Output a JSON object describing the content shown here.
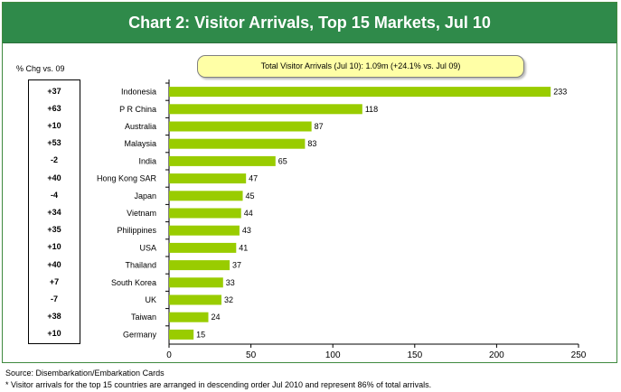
{
  "title": "Chart 2: Visitor Arrivals, Top 15 Markets, Jul 10",
  "pct_header": "% Chg vs. 09",
  "total_box": "Total Visitor Arrivals (Jul 10): 1.09m (+24.1% vs. Jul 09)",
  "pct_changes": [
    "+37",
    "+63",
    "+10",
    "+53",
    "-2",
    "+40",
    "-4",
    "+34",
    "+35",
    "+10",
    "+40",
    "+7",
    "-7",
    "+38",
    "+10"
  ],
  "colors": {
    "bar": "#99cc00",
    "header": "#2f8a4a",
    "box": "#ffffa6"
  },
  "chart_data": {
    "type": "bar",
    "orientation": "horizontal",
    "categories": [
      "Indonesia",
      "P R China",
      "Australia",
      "Malaysia",
      "India",
      "Hong Kong SAR",
      "Japan",
      "Vietnam",
      "Philippines",
      "USA",
      "Thailand",
      "South Korea",
      "UK",
      "Taiwan",
      "Germany"
    ],
    "values": [
      233,
      118,
      87,
      83,
      65,
      47,
      45,
      44,
      43,
      41,
      37,
      33,
      32,
      24,
      15
    ],
    "xlim": [
      0,
      250
    ],
    "xticks": [
      0,
      50,
      100,
      150,
      200,
      250
    ],
    "grid": false,
    "title": "Chart 2: Visitor Arrivals, Top 15 Markets, Jul 10"
  },
  "source": "Source: Disembarkation/Embarkation Cards",
  "note": "* Visitor arrivals for the top 15 countries are arranged in descending order Jul 2010 and represent 86% of total arrivals."
}
